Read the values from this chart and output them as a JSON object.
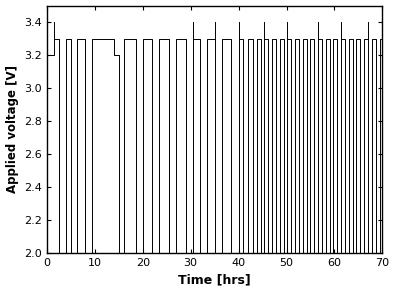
{
  "xlabel": "Time [hrs]",
  "ylabel": "Applied voltage [V]",
  "xlim": [
    0,
    70
  ],
  "ylim": [
    2.0,
    3.5
  ],
  "yticks": [
    2.0,
    2.2,
    2.4,
    2.6,
    2.8,
    3.0,
    3.2,
    3.4
  ],
  "xticks": [
    0,
    10,
    20,
    30,
    40,
    50,
    60,
    70
  ],
  "background_color": "#ffffff",
  "line_color": "#000000",
  "fig_facecolor": "#ffffff",
  "high_voltage": 3.3,
  "low_voltage": 2.0,
  "spike_high": 3.4,
  "mid_voltage": 3.2,
  "signal": [
    [
      0.0,
      3.2
    ],
    [
      1.5,
      3.2
    ],
    [
      1.5,
      3.3
    ],
    [
      2.5,
      3.3
    ],
    [
      2.5,
      2.0
    ],
    [
      4.0,
      2.0
    ],
    [
      4.0,
      3.3
    ],
    [
      5.0,
      3.3
    ],
    [
      5.0,
      2.0
    ],
    [
      6.2,
      2.0
    ],
    [
      6.2,
      3.3
    ],
    [
      8.0,
      3.3
    ],
    [
      8.0,
      2.0
    ],
    [
      9.5,
      2.0
    ],
    [
      9.5,
      3.3
    ],
    [
      14.0,
      3.3
    ],
    [
      14.0,
      3.2
    ],
    [
      15.0,
      3.2
    ],
    [
      15.0,
      2.0
    ],
    [
      16.2,
      2.0
    ],
    [
      16.2,
      3.3
    ],
    [
      18.5,
      3.3
    ],
    [
      18.5,
      2.0
    ],
    [
      20.0,
      2.0
    ],
    [
      20.0,
      3.3
    ],
    [
      22.0,
      3.3
    ],
    [
      22.0,
      2.0
    ],
    [
      23.5,
      2.0
    ],
    [
      23.5,
      3.3
    ],
    [
      25.5,
      3.3
    ],
    [
      25.5,
      2.0
    ],
    [
      27.0,
      2.0
    ],
    [
      27.0,
      3.3
    ],
    [
      29.0,
      3.3
    ],
    [
      29.0,
      2.0
    ],
    [
      30.5,
      2.0
    ],
    [
      30.5,
      3.3
    ],
    [
      32.0,
      3.3
    ],
    [
      32.0,
      2.0
    ],
    [
      33.5,
      2.0
    ],
    [
      33.5,
      3.3
    ],
    [
      35.0,
      3.3
    ],
    [
      35.0,
      2.0
    ],
    [
      36.5,
      2.0
    ],
    [
      36.5,
      3.3
    ],
    [
      38.5,
      3.3
    ],
    [
      38.5,
      2.0
    ],
    [
      40.0,
      2.0
    ],
    [
      40.0,
      3.3
    ],
    [
      41.0,
      3.3
    ],
    [
      41.0,
      2.0
    ],
    [
      42.0,
      2.0
    ],
    [
      42.0,
      3.3
    ],
    [
      43.0,
      3.3
    ],
    [
      43.0,
      2.0
    ],
    [
      43.8,
      2.0
    ],
    [
      43.8,
      3.3
    ],
    [
      44.6,
      3.3
    ],
    [
      44.6,
      2.0
    ],
    [
      45.4,
      2.0
    ],
    [
      45.4,
      3.3
    ],
    [
      46.2,
      3.3
    ],
    [
      46.2,
      2.0
    ],
    [
      47.0,
      2.0
    ],
    [
      47.0,
      3.3
    ],
    [
      47.8,
      3.3
    ],
    [
      47.8,
      2.0
    ],
    [
      48.6,
      2.0
    ],
    [
      48.6,
      3.3
    ],
    [
      49.4,
      3.3
    ],
    [
      49.4,
      2.0
    ],
    [
      50.2,
      2.0
    ],
    [
      50.2,
      3.3
    ],
    [
      51.0,
      3.3
    ],
    [
      51.0,
      2.0
    ],
    [
      51.8,
      2.0
    ],
    [
      51.8,
      3.3
    ],
    [
      52.6,
      3.3
    ],
    [
      52.6,
      2.0
    ],
    [
      53.4,
      2.0
    ],
    [
      53.4,
      3.3
    ],
    [
      54.2,
      3.3
    ],
    [
      54.2,
      2.0
    ],
    [
      55.0,
      2.0
    ],
    [
      55.0,
      3.3
    ],
    [
      55.8,
      3.3
    ],
    [
      55.8,
      2.0
    ],
    [
      56.6,
      2.0
    ],
    [
      56.6,
      3.3
    ],
    [
      57.4,
      3.3
    ],
    [
      57.4,
      2.0
    ],
    [
      58.2,
      2.0
    ],
    [
      58.2,
      3.3
    ],
    [
      59.0,
      3.3
    ],
    [
      59.0,
      2.0
    ],
    [
      59.8,
      2.0
    ],
    [
      59.8,
      3.3
    ],
    [
      60.6,
      3.3
    ],
    [
      60.6,
      2.0
    ],
    [
      61.4,
      2.0
    ],
    [
      61.4,
      3.3
    ],
    [
      62.2,
      3.3
    ],
    [
      62.2,
      2.0
    ],
    [
      63.0,
      2.0
    ],
    [
      63.0,
      3.3
    ],
    [
      63.8,
      3.3
    ],
    [
      63.8,
      2.0
    ],
    [
      64.6,
      2.0
    ],
    [
      64.6,
      3.3
    ],
    [
      65.4,
      3.3
    ],
    [
      65.4,
      2.0
    ],
    [
      66.2,
      2.0
    ],
    [
      66.2,
      3.3
    ],
    [
      67.0,
      3.3
    ],
    [
      67.0,
      2.0
    ],
    [
      67.8,
      2.0
    ],
    [
      67.8,
      3.3
    ],
    [
      68.6,
      3.3
    ],
    [
      68.6,
      2.0
    ],
    [
      69.4,
      2.0
    ],
    [
      69.4,
      3.3
    ],
    [
      70.0,
      3.3
    ]
  ],
  "spike_times": [
    1.5,
    30.5,
    35.0,
    40.0,
    45.4,
    50.2,
    56.6,
    61.4,
    67.0
  ]
}
